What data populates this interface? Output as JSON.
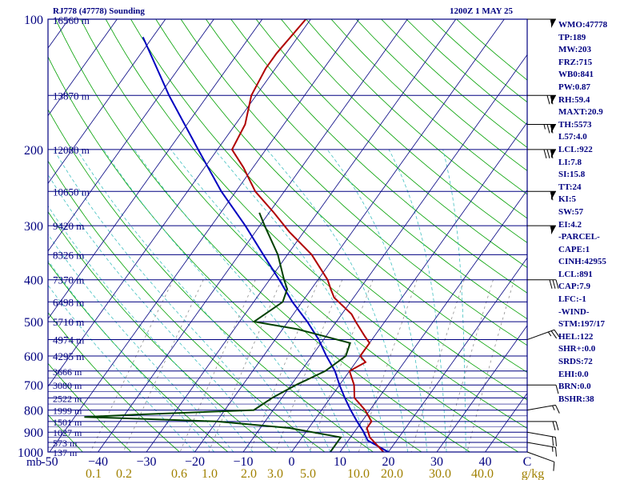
{
  "header": {
    "station": "RJ778 (47778) Sounding",
    "time": "1200Z  1 MAY 25"
  },
  "stats": [
    "WMO:47778",
    "TP:189",
    "MW:203",
    "FRZ:715",
    "WB0:841",
    "PW:0.87",
    "RH:59.4",
    "MAXT:20.9",
    "TH:5573",
    "L57:4.0",
    "LCL:922",
    "LI:7.8",
    "SI:15.8",
    "TT:24",
    "KI:5",
    "SW:57",
    "EI:4.2",
    "-PARCEL-",
    "CAPE:1",
    "CINH:42955",
    "LCL:891",
    "CAP:7.9",
    "LFC:-1",
    "-WIND-",
    "STM:197/17",
    "HEL:122",
    "SHR+:0.0",
    "SRDS:72",
    "EHI:0.0",
    "BRN:0.0",
    "BSHR:38"
  ],
  "colors": {
    "isobar": "#000080",
    "isotherm": "#000080",
    "dry_adiabat": "#00a000",
    "moist_adiabat": "#40c0c0",
    "mixing_ratio": "#909090",
    "temperature": "#b00000",
    "dewpoint": "#004000",
    "parcel": "#0000c0",
    "labels": "#000080",
    "mixing_labels": "#a08000",
    "wind": "#000000"
  },
  "chart_data": {
    "type": "skew-t",
    "title": "RJ778 (47778) Sounding",
    "xlabel": "",
    "ylabel": "mb",
    "pressure_levels": [
      100,
      200,
      300,
      400,
      500,
      600,
      700,
      800,
      900,
      1000
    ],
    "pressure_labels": [
      "100",
      "200",
      "300",
      "400",
      "500",
      "600",
      "700",
      "800",
      "900",
      "1000"
    ],
    "temperature_ticks": [
      -50,
      -40,
      -30,
      -20,
      -10,
      0,
      10,
      20,
      30,
      40
    ],
    "temperature_tick_labels": [
      "-50",
      "−40",
      "−30",
      "−20",
      "−10",
      "0",
      "10",
      "20",
      "30",
      "40"
    ],
    "axis_end_label": "C",
    "mixing_ratio_labels": [
      "0.1",
      "0.2",
      "0.6",
      "1.0",
      "2.0",
      "3.0",
      "5.0",
      "10.0",
      "20.0",
      "30.0",
      "40.0"
    ],
    "mixing_ratio_unit": "g/kg",
    "height_levels": [
      {
        "p": 150,
        "label": "13870 m"
      },
      {
        "p": 200,
        "label": "12080 m"
      },
      {
        "p": 250,
        "label": "10650 m"
      },
      {
        "p": 300,
        "label": "9420 m"
      },
      {
        "p": 350,
        "label": "8326 m"
      },
      {
        "p": 400,
        "label": "7370 m"
      },
      {
        "p": 450,
        "label": "6498 m"
      },
      {
        "p": 500,
        "label": "5710 m"
      },
      {
        "p": 550,
        "label": "4974 m"
      },
      {
        "p": 600,
        "label": "4295 m"
      },
      {
        "p": 650,
        "label": "3666 m"
      },
      {
        "p": 700,
        "label": "3080 m"
      },
      {
        "p": 750,
        "label": "2522 m"
      },
      {
        "p": 800,
        "label": "1999 m"
      },
      {
        "p": 850,
        "label": "1501 m"
      },
      {
        "p": 900,
        "label": "1027 m"
      },
      {
        "p": 950,
        "label": "573 m"
      },
      {
        "p": 1000,
        "label": "137 m"
      }
    ],
    "top_height_label": "16560 m",
    "temperature_profile": [
      {
        "p": 1000,
        "t": 19
      },
      {
        "p": 925,
        "t": 14
      },
      {
        "p": 880,
        "t": 12
      },
      {
        "p": 850,
        "t": 12
      },
      {
        "p": 800,
        "t": 9
      },
      {
        "p": 750,
        "t": 5
      },
      {
        "p": 700,
        "t": 3
      },
      {
        "p": 650,
        "t": 0
      },
      {
        "p": 620,
        "t": 2
      },
      {
        "p": 600,
        "t": 0
      },
      {
        "p": 560,
        "t": 0
      },
      {
        "p": 540,
        "t": -2
      },
      {
        "p": 500,
        "t": -6
      },
      {
        "p": 480,
        "t": -8
      },
      {
        "p": 440,
        "t": -14
      },
      {
        "p": 420,
        "t": -16
      },
      {
        "p": 400,
        "t": -18
      },
      {
        "p": 350,
        "t": -25
      },
      {
        "p": 310,
        "t": -33
      },
      {
        "p": 280,
        "t": -39
      },
      {
        "p": 250,
        "t": -46
      },
      {
        "p": 220,
        "t": -52
      },
      {
        "p": 200,
        "t": -57
      },
      {
        "p": 175,
        "t": -58
      },
      {
        "p": 150,
        "t": -61
      },
      {
        "p": 130,
        "t": -62
      },
      {
        "p": 120,
        "t": -62
      },
      {
        "p": 100,
        "t": -61
      }
    ],
    "dewpoint_profile": [
      {
        "p": 1000,
        "td": 8
      },
      {
        "p": 950,
        "td": 8
      },
      {
        "p": 925,
        "td": 8
      },
      {
        "p": 880,
        "td": -4
      },
      {
        "p": 850,
        "td": -20
      },
      {
        "p": 830,
        "td": -48
      },
      {
        "p": 820,
        "td": -38
      },
      {
        "p": 800,
        "td": -14
      },
      {
        "p": 750,
        "td": -12
      },
      {
        "p": 700,
        "td": -9
      },
      {
        "p": 650,
        "td": -5
      },
      {
        "p": 600,
        "td": -3
      },
      {
        "p": 560,
        "td": -4
      },
      {
        "p": 520,
        "td": -17
      },
      {
        "p": 500,
        "td": -27
      },
      {
        "p": 450,
        "td": -24
      },
      {
        "p": 420,
        "td": -25
      },
      {
        "p": 400,
        "td": -27
      },
      {
        "p": 350,
        "td": -32
      },
      {
        "p": 300,
        "td": -39
      },
      {
        "p": 280,
        "td": -42
      }
    ],
    "parcel_profile": [
      {
        "p": 1000,
        "t": 20
      },
      {
        "p": 970,
        "t": 17
      },
      {
        "p": 940,
        "t": 14
      },
      {
        "p": 900,
        "t": 12
      },
      {
        "p": 850,
        "t": 9
      },
      {
        "p": 800,
        "t": 6
      },
      {
        "p": 750,
        "t": 3
      },
      {
        "p": 700,
        "t": 0
      },
      {
        "p": 650,
        "t": -3
      },
      {
        "p": 600,
        "t": -7
      },
      {
        "p": 550,
        "t": -11
      },
      {
        "p": 500,
        "t": -16
      },
      {
        "p": 450,
        "t": -22
      },
      {
        "p": 400,
        "t": -28
      },
      {
        "p": 350,
        "t": -35
      },
      {
        "p": 300,
        "t": -43
      },
      {
        "p": 250,
        "t": -53
      },
      {
        "p": 200,
        "t": -64
      },
      {
        "p": 150,
        "t": -78
      },
      {
        "p": 110,
        "t": -92
      }
    ],
    "wind_barbs": [
      {
        "p": 1000,
        "dir": 290,
        "kt": 10
      },
      {
        "p": 950,
        "dir": 280,
        "kt": 15
      },
      {
        "p": 900,
        "dir": 280,
        "kt": 20
      },
      {
        "p": 850,
        "dir": 270,
        "kt": 20
      },
      {
        "p": 800,
        "dir": 260,
        "kt": 15
      },
      {
        "p": 700,
        "dir": 270,
        "kt": 10
      },
      {
        "p": 550,
        "dir": 250,
        "kt": 25
      },
      {
        "p": 400,
        "dir": 270,
        "kt": 30
      },
      {
        "p": 300,
        "dir": 270,
        "kt": 55
      },
      {
        "p": 250,
        "dir": 270,
        "kt": 60
      },
      {
        "p": 200,
        "dir": 270,
        "kt": 80
      },
      {
        "p": 175,
        "dir": 270,
        "kt": 75
      },
      {
        "p": 150,
        "dir": 270,
        "kt": 70
      },
      {
        "p": 100,
        "dir": 270,
        "kt": 55
      }
    ]
  }
}
